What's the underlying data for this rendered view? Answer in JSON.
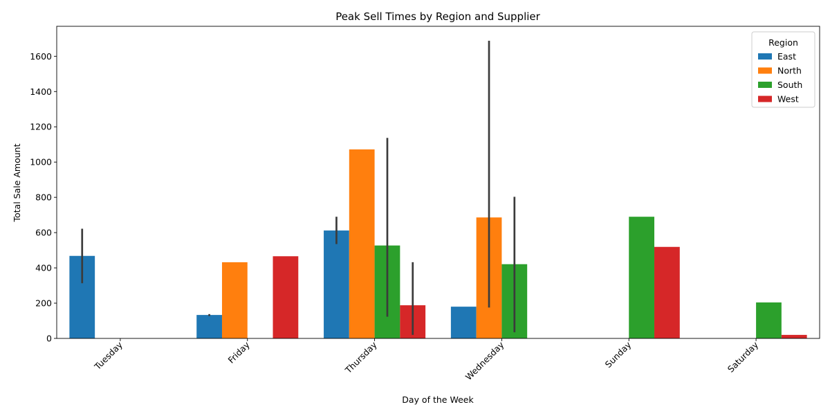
{
  "chart_data": {
    "type": "bar",
    "title": "Peak Sell Times by Region and Supplier",
    "xlabel": "Day of the Week",
    "ylabel": "Total Sale Amount",
    "categories": [
      "Tuesday",
      "Friday",
      "Thursday",
      "Wednesday",
      "Sunday",
      "Saturday"
    ],
    "ylim": [
      0,
      1770
    ],
    "yticks": [
      0,
      200,
      400,
      600,
      800,
      1000,
      1200,
      1400,
      1600
    ],
    "grid": false,
    "legend": {
      "title": "Region",
      "placement": "top-right"
    },
    "series": [
      {
        "name": "East",
        "color": "#1f77b4",
        "values": [
          468,
          133,
          612,
          180,
          null,
          null
        ],
        "err_low": [
          313,
          127,
          535,
          null,
          null,
          null
        ],
        "err_high": [
          622,
          138,
          690,
          null,
          null,
          null
        ]
      },
      {
        "name": "North",
        "color": "#ff7f0e",
        "values": [
          null,
          432,
          1072,
          686,
          null,
          null
        ],
        "err_low": [
          null,
          null,
          null,
          175,
          null,
          null
        ],
        "err_high": [
          null,
          null,
          null,
          1688,
          null,
          null
        ]
      },
      {
        "name": "South",
        "color": "#2ca02c",
        "values": [
          null,
          null,
          527,
          421,
          690,
          204
        ],
        "err_low": [
          null,
          null,
          123,
          35,
          null,
          null
        ],
        "err_high": [
          null,
          null,
          1137,
          803,
          null,
          null
        ]
      },
      {
        "name": "West",
        "color": "#d62728",
        "values": [
          null,
          466,
          188,
          null,
          519,
          20
        ],
        "err_low": [
          null,
          null,
          20,
          null,
          null,
          null
        ],
        "err_high": [
          null,
          null,
          432,
          null,
          null,
          null
        ]
      }
    ]
  }
}
